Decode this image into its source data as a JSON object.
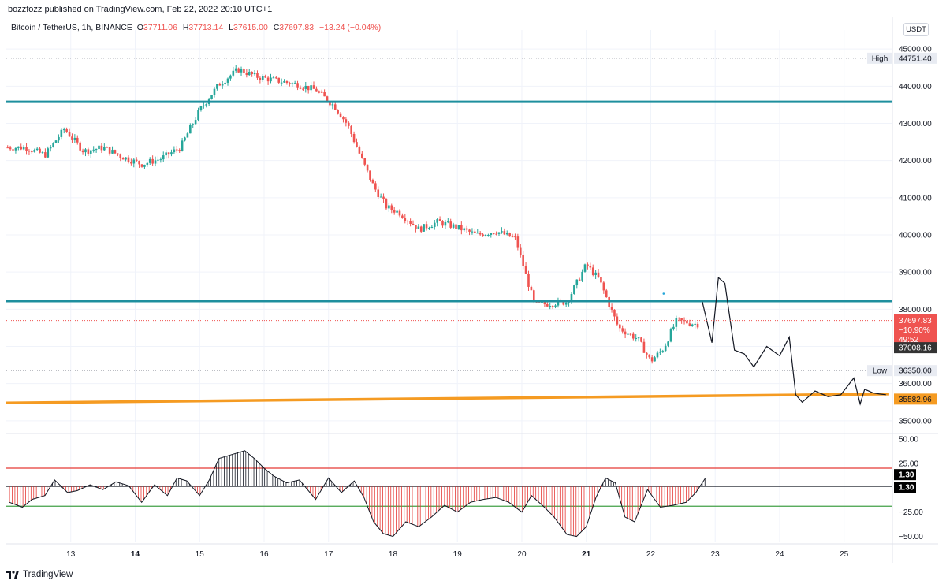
{
  "header": {
    "publish_line": "bozzfozz published on TradingView.com, Feb 22, 2022 20:10 UTC+1"
  },
  "legend": {
    "symbol": "Bitcoin / TetherUS, 1h, BINANCE",
    "o_label": "O",
    "o_value": "37711.06",
    "h_label": "H",
    "h_value": "37713.14",
    "l_label": "L",
    "l_value": "37615.00",
    "c_label": "C",
    "c_value": "37697.83",
    "change": "−13.24 (−0.04%)"
  },
  "currency_button": "USDT",
  "footer": {
    "brand": "TradingView"
  },
  "colors": {
    "up": "#26a69a",
    "down": "#ef5350",
    "teal_line": "#1e8f9e",
    "orange_line": "#f59b22",
    "osc_upper": "#e53935",
    "osc_lower": "#43a047",
    "price_tag": "#ef5350",
    "dark_tag": "#333333"
  },
  "chart_data": [
    {
      "type": "line",
      "title": "Bitcoin / TetherUS, 1h, BINANCE",
      "x_ticks": [
        "13",
        "14",
        "15",
        "16",
        "17",
        "18",
        "19",
        "20",
        "21",
        "22",
        "23",
        "24",
        "25"
      ],
      "y_ticks": [
        "45000.00",
        "44000.00",
        "43000.00",
        "42000.00",
        "41000.00",
        "40000.00",
        "39000.00",
        "38000.00",
        "37000.00",
        "36000.00",
        "35000.00"
      ],
      "ylim": [
        34700,
        45300
      ],
      "grid": true,
      "price_path": {
        "x": [
          12.3,
          12.6,
          12.9,
          13.2,
          13.5,
          13.8,
          14.1,
          14.4,
          14.7,
          15.0,
          15.3,
          15.6,
          15.9,
          16.2,
          16.5,
          16.8,
          17.1,
          17.3,
          17.5,
          17.7,
          17.9,
          18.1,
          18.4,
          18.7,
          19.0,
          19.3,
          19.6,
          19.9,
          20.2,
          20.4,
          20.7,
          21.0,
          21.2,
          21.5,
          21.8,
          22.0,
          22.2,
          22.4,
          22.7
        ],
        "y": [
          42350,
          42150,
          42850,
          42250,
          42350,
          42100,
          41900,
          42050,
          42350,
          43350,
          44050,
          44450,
          44250,
          44150,
          44050,
          43900,
          43450,
          42950,
          42100,
          41300,
          40750,
          40600,
          40150,
          40350,
          40200,
          40000,
          40100,
          39900,
          38100,
          38150,
          38200,
          39200,
          38800,
          37500,
          37200,
          36600,
          36950,
          37700,
          37600
        ]
      },
      "projection": {
        "x": [
          22.8,
          22.95,
          23.05,
          23.15,
          23.3,
          23.45,
          23.6,
          23.8,
          24.0,
          24.15,
          24.25,
          24.35,
          24.55,
          24.75,
          24.95,
          25.15,
          25.25,
          25.32,
          25.45,
          25.55,
          25.65
        ],
        "y": [
          38200,
          37100,
          38850,
          38700,
          36900,
          36800,
          36450,
          37000,
          36750,
          37250,
          35700,
          35500,
          35800,
          35650,
          35700,
          36150,
          35450,
          35850,
          35750,
          35720,
          35700
        ]
      },
      "horizontal_levels": [
        {
          "value": 43580,
          "kind": "teal"
        },
        {
          "value": 38220,
          "kind": "teal"
        }
      ],
      "trendline": {
        "x": [
          12.0,
          25.7
        ],
        "y": [
          35480,
          35720
        ]
      },
      "markers": [
        {
          "label": "High",
          "value": "44751.40"
        },
        {
          "label": "Low",
          "value": "36350.00"
        }
      ],
      "tags": [
        {
          "value": "37697.83",
          "sub1": "−10.90%",
          "sub2": "49:52",
          "kind": "red"
        },
        {
          "value": "37008.16",
          "kind": "dark"
        },
        {
          "value": "35582.96",
          "kind": "orange"
        }
      ],
      "small_dot": {
        "x": 22.2,
        "y": 38420
      }
    },
    {
      "type": "area",
      "title": "",
      "y_ticks": [
        "50.00",
        "25.00",
        "−25.00",
        "−50.00"
      ],
      "ylim": [
        -56,
        54
      ],
      "levels": [
        {
          "value": 20,
          "kind": "upper"
        },
        {
          "value": 1.3,
          "kind": "zero"
        },
        {
          "value": -19,
          "kind": "lower"
        }
      ],
      "tags": [
        {
          "value": "1.30"
        },
        {
          "value": "1.30"
        }
      ],
      "x": [
        12.05,
        12.25,
        12.4,
        12.6,
        12.75,
        12.95,
        13.1,
        13.3,
        13.5,
        13.7,
        13.9,
        14.1,
        14.3,
        14.5,
        14.65,
        14.8,
        15.0,
        15.15,
        15.3,
        15.5,
        15.7,
        15.85,
        16.0,
        16.15,
        16.35,
        16.55,
        16.8,
        17.0,
        17.2,
        17.4,
        17.55,
        17.7,
        17.85,
        18.0,
        18.2,
        18.4,
        18.6,
        18.8,
        19.0,
        19.2,
        19.4,
        19.6,
        19.8,
        20.0,
        20.15,
        20.35,
        20.5,
        20.7,
        20.85,
        21.0,
        21.15,
        21.3,
        21.45,
        21.6,
        21.75,
        21.95,
        22.15,
        22.35,
        22.55,
        22.7,
        22.85
      ],
      "values": [
        -15,
        -20,
        -12,
        -8,
        8,
        -5,
        -3,
        3,
        -2,
        6,
        2,
        -15,
        3,
        -8,
        10,
        7,
        -8,
        8,
        30,
        34,
        38,
        30,
        20,
        12,
        5,
        8,
        -12,
        10,
        -5,
        7,
        -10,
        -35,
        -47,
        -50,
        -35,
        -40,
        -30,
        -18,
        -25,
        -15,
        -12,
        -10,
        -15,
        -25,
        -8,
        -20,
        -30,
        -48,
        -50,
        -40,
        -10,
        10,
        5,
        -30,
        -35,
        -2,
        -20,
        -18,
        -15,
        -5,
        10
      ]
    }
  ]
}
